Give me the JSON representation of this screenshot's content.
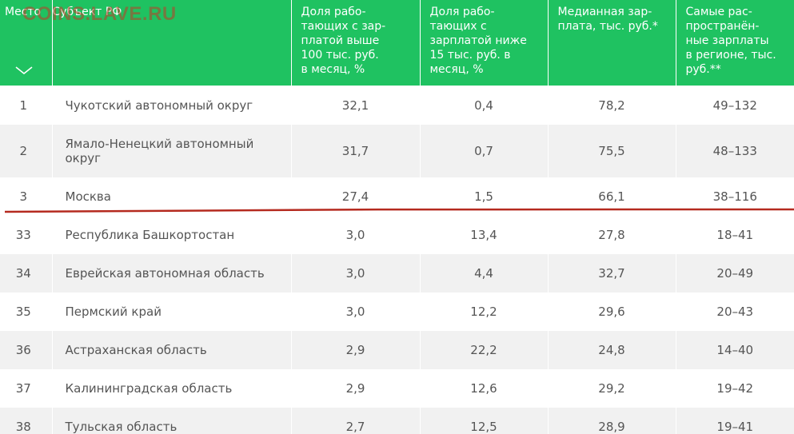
{
  "watermark": "COINS.LAVE.RU",
  "headers": {
    "place": "Место",
    "subject": "Субъект РФ",
    "share_high": "Доля рабо-\nтающих с зар-\nплатой выше\n100 тыс. руб.\nв месяц, %",
    "share_low": "Доля рабо-\nтающих с\nзарплатой ниже\n15 тыс. руб. в\nмесяц, %",
    "median": "Медианная зар-\nплата, тыс. руб.*",
    "common": "Самые рас-\nпространён-\nные зарплаты\nв регионе, тыс.\nруб.**"
  },
  "colors": {
    "header_bg": "#1fc261",
    "row_alt_bg": "#f1f1f1",
    "divider_red": "#b52a1f"
  },
  "rows": [
    {
      "place": "1",
      "subject": "Чукотский автономный округ",
      "share_high": "32,1",
      "share_low": "0,4",
      "median": "78,2",
      "common": "49–132"
    },
    {
      "place": "2",
      "subject": "Ямало-Ненецкий автономный округ",
      "share_high": "31,7",
      "share_low": "0,7",
      "median": "75,5",
      "common": "48–133"
    },
    {
      "place": "3",
      "subject": "Москва",
      "share_high": "27,4",
      "share_low": "1,5",
      "median": "66,1",
      "common": "38–116"
    },
    {
      "place": "33",
      "subject": "Республика Башкортостан",
      "share_high": "3,0",
      "share_low": "13,4",
      "median": "27,8",
      "common": "18–41"
    },
    {
      "place": "34",
      "subject": "Еврейская автономная область",
      "share_high": "3,0",
      "share_low": "4,4",
      "median": "32,7",
      "common": "20–49"
    },
    {
      "place": "35",
      "subject": "Пермский край",
      "share_high": "3,0",
      "share_low": "12,2",
      "median": "29,6",
      "common": "20–43"
    },
    {
      "place": "36",
      "subject": "Астраханская область",
      "share_high": "2,9",
      "share_low": "22,2",
      "median": "24,8",
      "common": "14–40"
    },
    {
      "place": "37",
      "subject": "Калининградская область",
      "share_high": "2,9",
      "share_low": "12,6",
      "median": "29,2",
      "common": "19–42"
    },
    {
      "place": "38",
      "subject": "Тульская область",
      "share_high": "2,7",
      "share_low": "12,5",
      "median": "28,9",
      "common": "19–41"
    }
  ]
}
